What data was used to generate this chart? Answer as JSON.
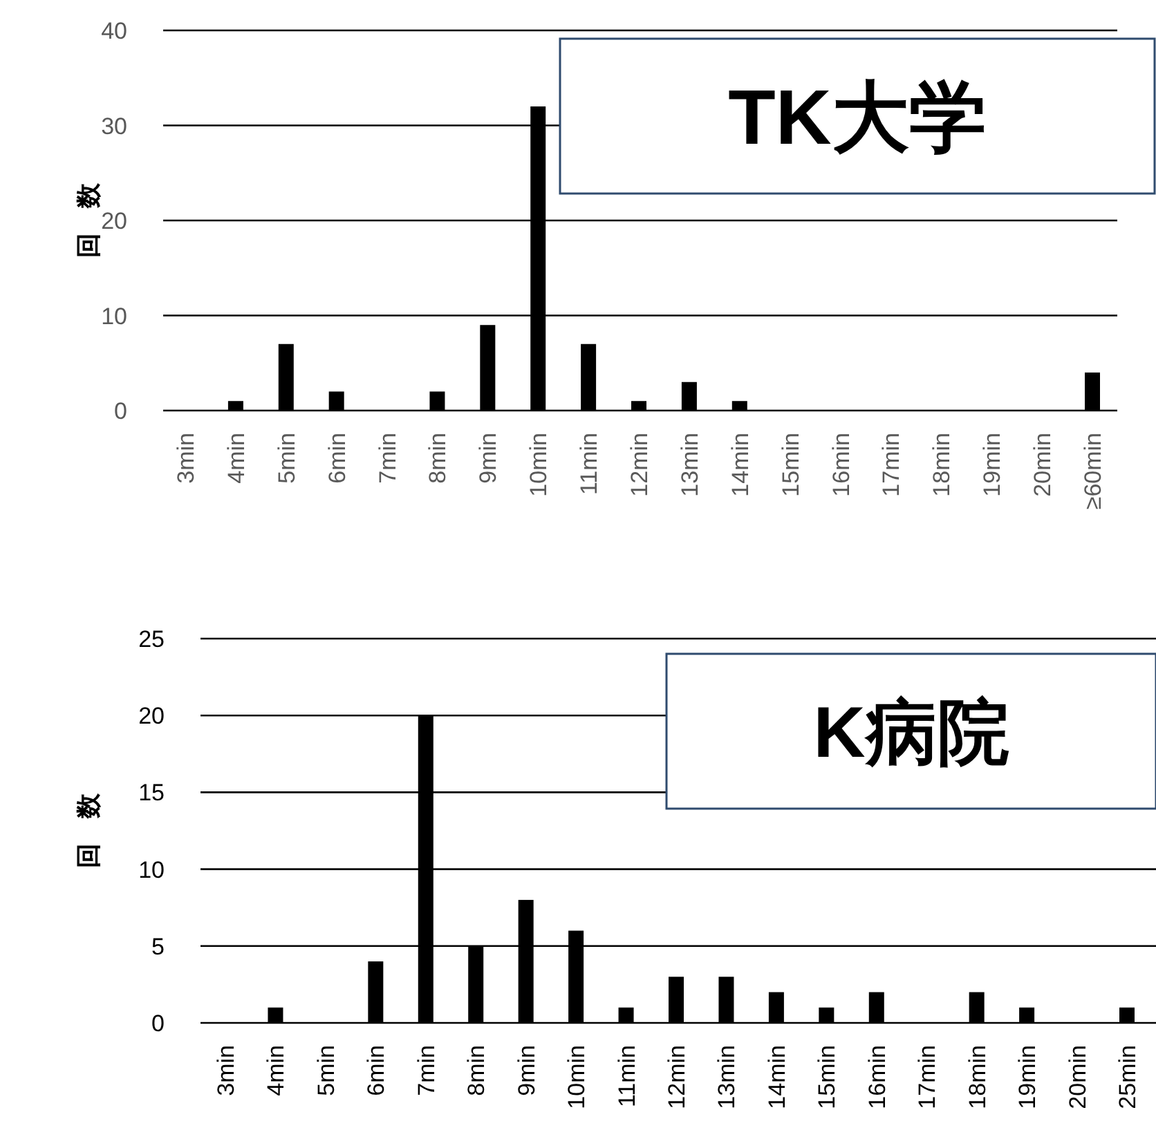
{
  "chart_data": [
    {
      "type": "bar",
      "title": "TK大学",
      "ylabel": "回　数",
      "categories": [
        "3min",
        "4min",
        "5min",
        "6min",
        "7min",
        "8min",
        "9min",
        "10min",
        "11min",
        "12min",
        "13min",
        "14min",
        "15min",
        "16min",
        "17min",
        "18min",
        "19min",
        "20min",
        "≥60min"
      ],
      "values": [
        0,
        1,
        7,
        2,
        0,
        2,
        9,
        32,
        7,
        1,
        3,
        1,
        0,
        0,
        0,
        0,
        0,
        0,
        4
      ],
      "color": "#000000",
      "ylim": [
        0,
        40
      ],
      "yticks": [
        0,
        10,
        20,
        30,
        40
      ],
      "grid": "y"
    },
    {
      "type": "bar",
      "title": "K病院",
      "ylabel": "回　数",
      "categories": [
        "3min",
        "4min",
        "5min",
        "6min",
        "7min",
        "8min",
        "9min",
        "10min",
        "11min",
        "12min",
        "13min",
        "14min",
        "15min",
        "16min",
        "17min",
        "18min",
        "19min",
        "20min",
        "25min"
      ],
      "values": [
        0,
        1,
        0,
        4,
        20,
        5,
        8,
        6,
        1,
        3,
        3,
        2,
        1,
        2,
        0,
        2,
        1,
        0,
        1
      ],
      "color": "#000000",
      "ylim": [
        0,
        25
      ],
      "yticks": [
        0,
        5,
        10,
        15,
        20,
        25
      ],
      "grid": "y"
    }
  ]
}
